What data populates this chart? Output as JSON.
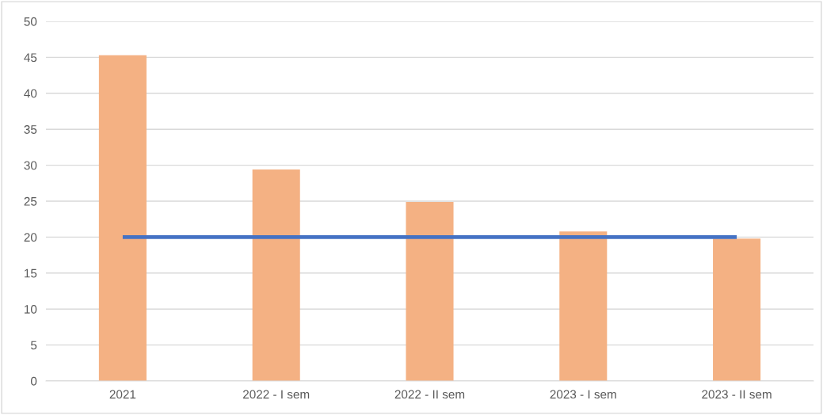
{
  "chart_data": {
    "type": "bar",
    "categories": [
      "2021",
      "2022 - I sem",
      "2022 - II sem",
      "2023 - I sem",
      "2023 - II sem"
    ],
    "series": [
      {
        "color": "#f4b183",
        "values": [
          45.3,
          29.4,
          24.9,
          20.8,
          19.8
        ]
      },
      {
        "type": "line",
        "color": "#4472c4",
        "values": [
          20,
          20,
          20,
          20,
          20
        ]
      }
    ],
    "ylim": [
      0,
      50
    ],
    "yticks": [
      0,
      5,
      10,
      15,
      20,
      25,
      30,
      35,
      40,
      45,
      50
    ],
    "grid": "y"
  }
}
